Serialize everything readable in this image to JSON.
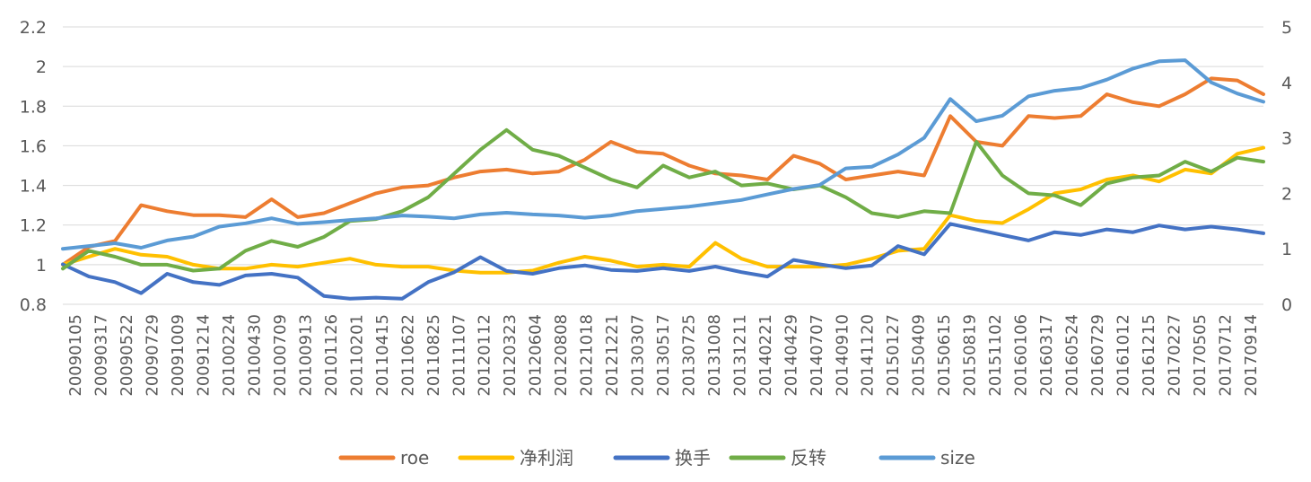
{
  "chart_data": {
    "type": "line",
    "categories": [
      "20090105",
      "20090317",
      "20090522",
      "20090729",
      "20091009",
      "20091214",
      "20100224",
      "20100430",
      "20100709",
      "20100913",
      "20101126",
      "20110201",
      "20110415",
      "20110622",
      "20110825",
      "20111107",
      "20120112",
      "20120323",
      "20120604",
      "20120808",
      "20121018",
      "20121221",
      "20130307",
      "20130517",
      "20130725",
      "20131008",
      "20131211",
      "20140221",
      "20140429",
      "20140707",
      "20140910",
      "20141120",
      "20150127",
      "20150409",
      "20150615",
      "20150819",
      "20151102",
      "20160106",
      "20160317",
      "20160524",
      "20160729",
      "20161012",
      "20161215",
      "20170227",
      "20170505",
      "20170712",
      "20170914"
    ],
    "left_axis": {
      "ticks": [
        "0.8",
        "1",
        "1.2",
        "1.4",
        "1.6",
        "1.8",
        "2",
        "2.2"
      ],
      "ylim": [
        0.8,
        2.2
      ]
    },
    "right_axis": {
      "ticks": [
        "0",
        "1",
        "2",
        "3",
        "4",
        "5"
      ],
      "ylim": [
        0,
        5
      ]
    },
    "grid": true,
    "legend_position": "bottom",
    "series": [
      {
        "name": "roe",
        "axis": "left",
        "color": "#ed7d31",
        "values": [
          1.0,
          1.09,
          1.12,
          1.3,
          1.27,
          1.25,
          1.25,
          1.24,
          1.33,
          1.24,
          1.26,
          1.31,
          1.36,
          1.39,
          1.4,
          1.44,
          1.47,
          1.48,
          1.46,
          1.47,
          1.53,
          1.62,
          1.57,
          1.56,
          1.5,
          1.46,
          1.45,
          1.43,
          1.55,
          1.51,
          1.43,
          1.45,
          1.47,
          1.45,
          1.75,
          1.62,
          1.6,
          1.75,
          1.74,
          1.75,
          1.86,
          1.82,
          1.8,
          1.86,
          1.94,
          1.93,
          1.86
        ]
      },
      {
        "name": "净利润",
        "axis": "left",
        "color": "#ffc000",
        "values": [
          1.0,
          1.04,
          1.08,
          1.05,
          1.04,
          1.0,
          0.98,
          0.98,
          1.0,
          0.99,
          1.01,
          1.03,
          1.0,
          0.99,
          0.99,
          0.97,
          0.96,
          0.96,
          0.97,
          1.01,
          1.04,
          1.02,
          0.99,
          1.0,
          0.99,
          1.11,
          1.03,
          0.99,
          0.99,
          0.99,
          1.0,
          1.03,
          1.07,
          1.08,
          1.25,
          1.22,
          1.21,
          1.28,
          1.36,
          1.38,
          1.43,
          1.45,
          1.42,
          1.48,
          1.46,
          1.56,
          1.59
        ]
      },
      {
        "name": "换手",
        "axis": "right",
        "color": "#4472c4",
        "values": [
          0.72,
          0.5,
          0.4,
          0.2,
          0.55,
          0.4,
          0.35,
          0.52,
          0.55,
          0.48,
          0.15,
          0.1,
          0.12,
          0.1,
          0.4,
          0.58,
          0.85,
          0.6,
          0.55,
          0.65,
          0.7,
          0.62,
          0.6,
          0.65,
          0.6,
          0.68,
          0.58,
          0.5,
          0.8,
          0.72,
          0.65,
          0.7,
          1.05,
          0.9,
          1.45,
          1.35,
          1.25,
          1.15,
          1.3,
          1.25,
          1.35,
          1.3,
          1.42,
          1.35,
          1.4,
          1.35,
          1.28
        ]
      },
      {
        "name": "反转",
        "axis": "left",
        "color": "#70ad47",
        "values": [
          0.98,
          1.07,
          1.04,
          1.0,
          1.0,
          0.97,
          0.98,
          1.07,
          1.12,
          1.09,
          1.14,
          1.22,
          1.23,
          1.27,
          1.34,
          1.46,
          1.58,
          1.68,
          1.58,
          1.55,
          1.49,
          1.43,
          1.39,
          1.5,
          1.44,
          1.47,
          1.4,
          1.41,
          1.38,
          1.4,
          1.34,
          1.26,
          1.24,
          1.27,
          1.26,
          1.62,
          1.45,
          1.36,
          1.35,
          1.3,
          1.41,
          1.44,
          1.45,
          1.52,
          1.47,
          1.54,
          1.52
        ]
      },
      {
        "name": "size",
        "axis": "right",
        "color": "#5b9bd5",
        "values": [
          1.0,
          1.05,
          1.1,
          1.02,
          1.15,
          1.22,
          1.4,
          1.46,
          1.55,
          1.45,
          1.48,
          1.52,
          1.55,
          1.6,
          1.58,
          1.55,
          1.62,
          1.65,
          1.62,
          1.6,
          1.56,
          1.6,
          1.68,
          1.72,
          1.76,
          1.82,
          1.88,
          1.98,
          2.08,
          2.15,
          2.45,
          2.48,
          2.7,
          3.0,
          3.7,
          3.3,
          3.4,
          3.75,
          3.85,
          3.9,
          4.05,
          4.25,
          4.38,
          4.4,
          4.0,
          3.8,
          3.65
        ]
      }
    ]
  }
}
